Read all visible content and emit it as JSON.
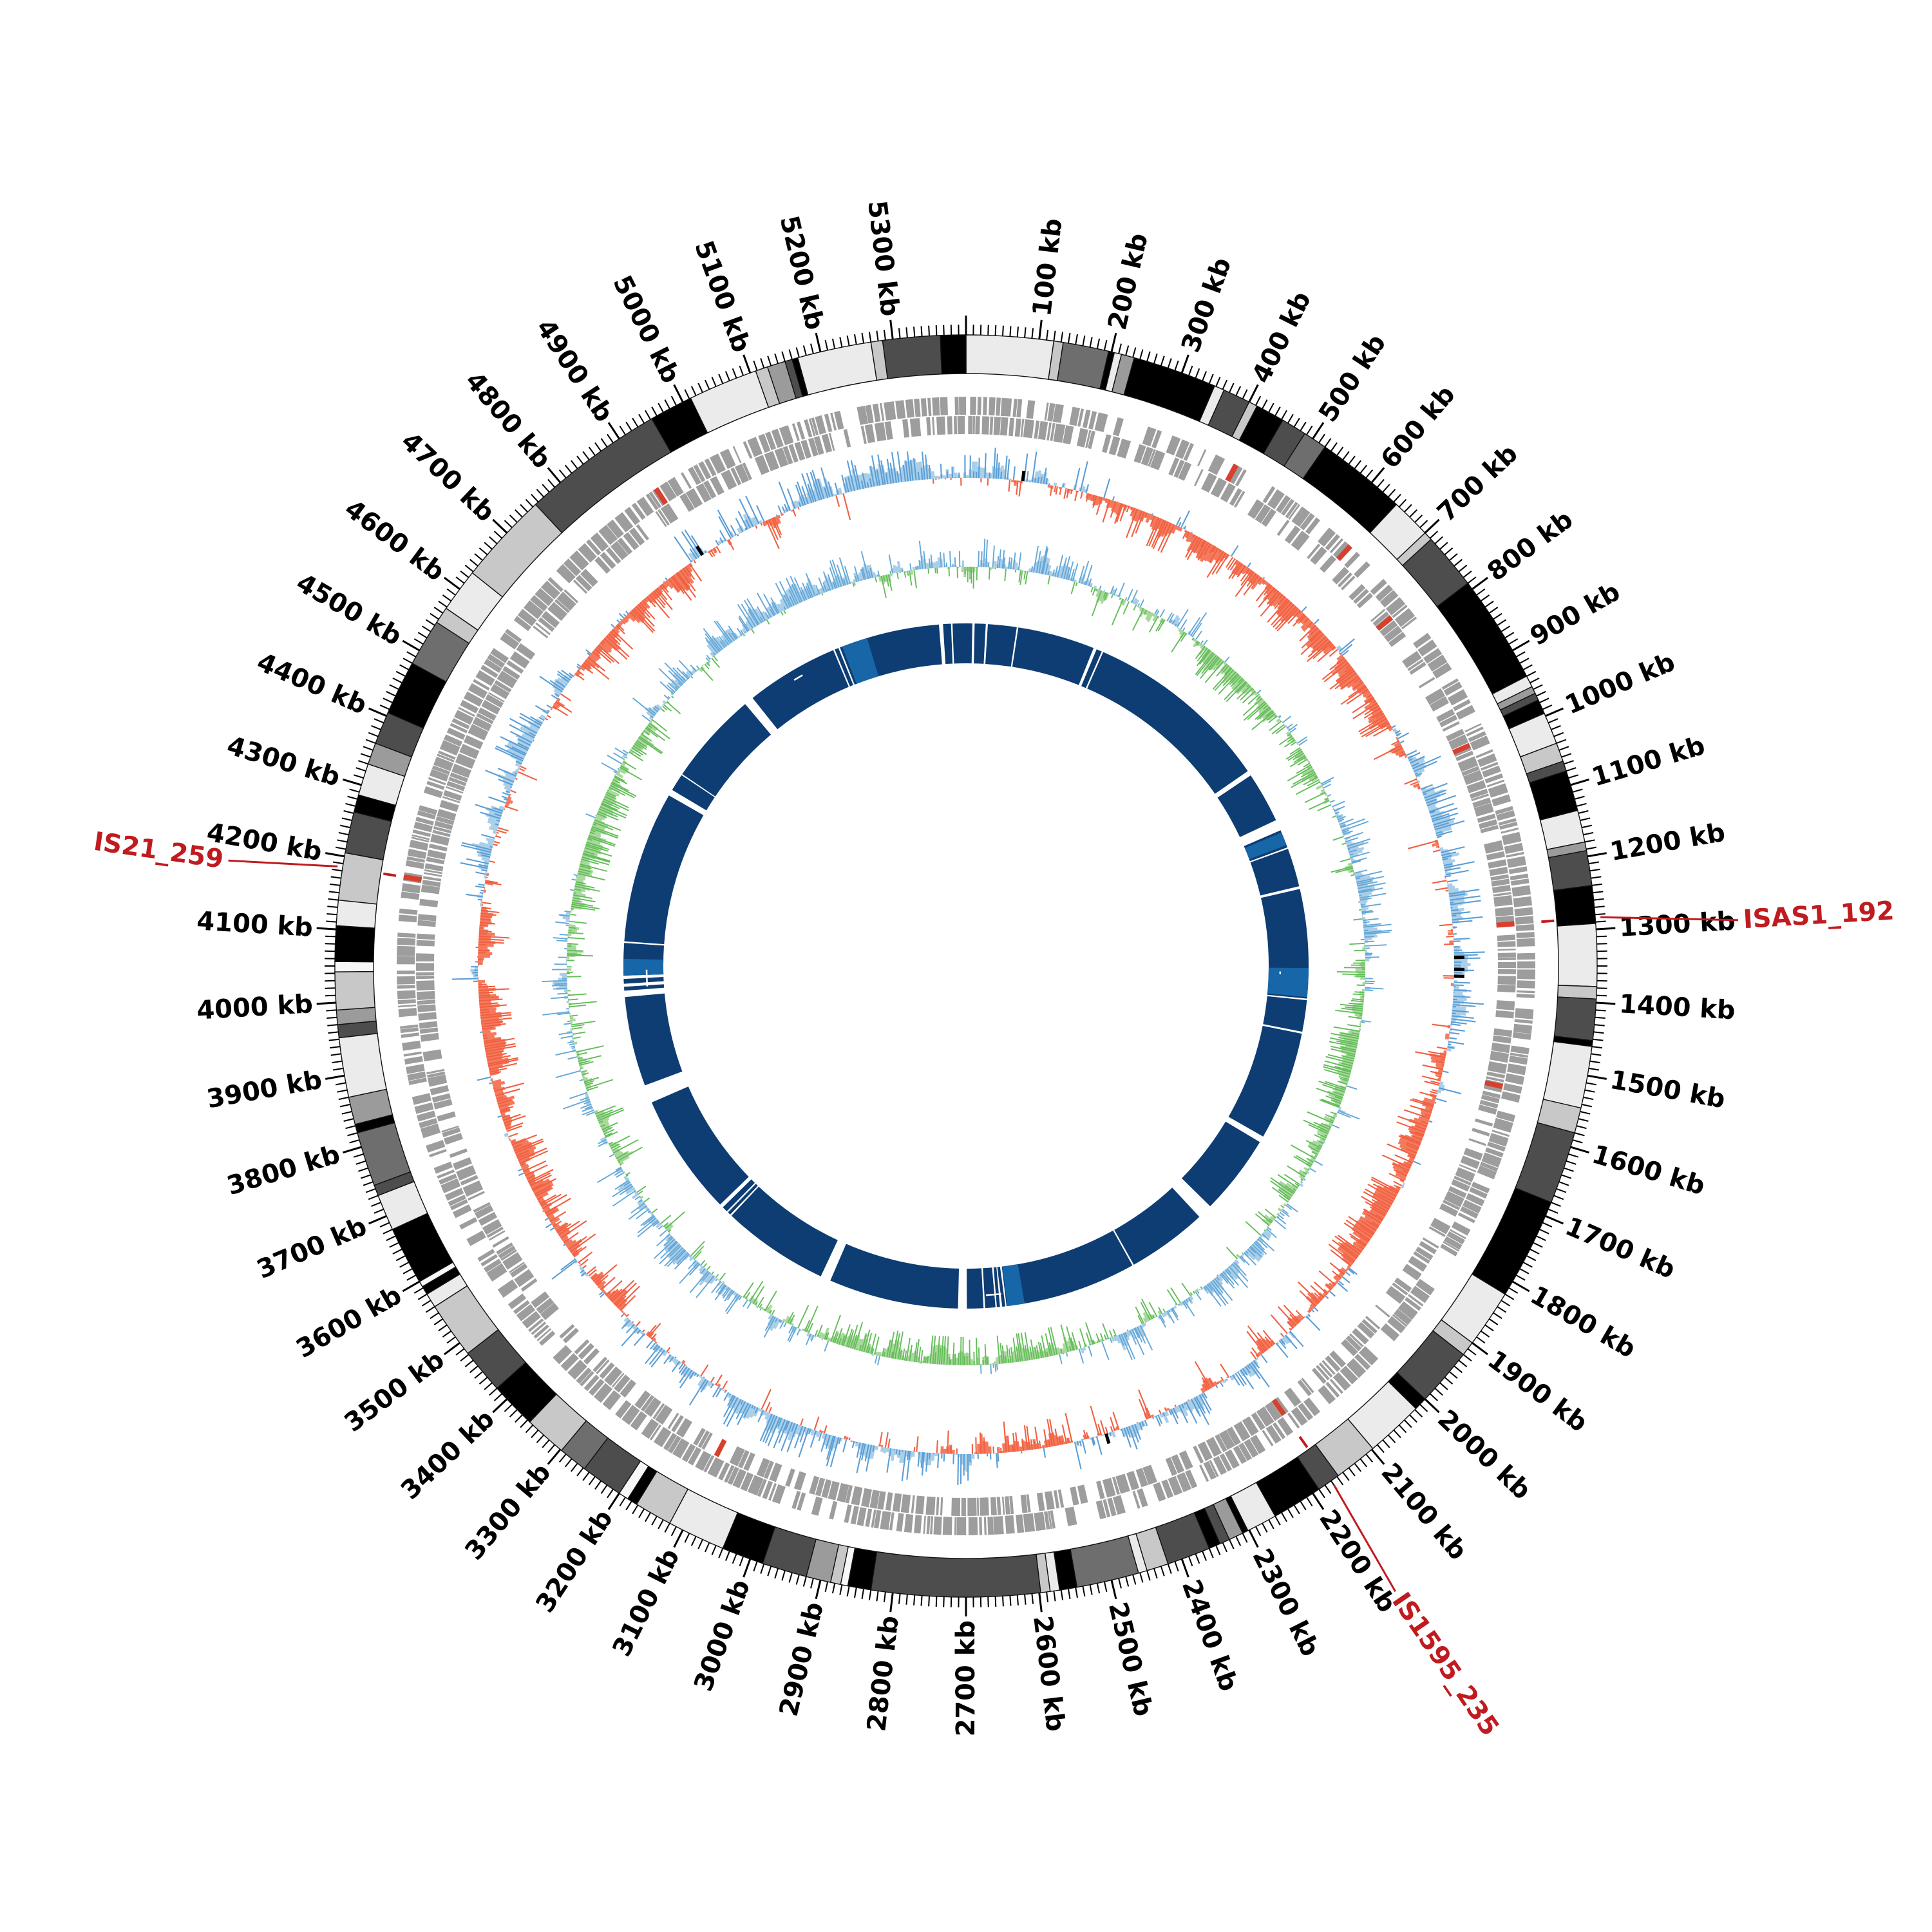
{
  "figure": {
    "title": "",
    "background": "#ffffff",
    "unit": "kb"
  },
  "colors": {
    "tick": "#000000",
    "tick_label": "#000000",
    "annotation_red": "#c01b1f",
    "gene_gray": "#9d9d9d",
    "gene_red": "#d8402e",
    "skew_fill_pos": "#a9cfe9",
    "skew_fill_neg": "#f47a5e",
    "skew_spike_pos": "#5b9ed6",
    "skew_spike_neg": "#f25f40",
    "gc_fill_pos": "#aacee8",
    "gc_fill_neg": "#a8d89c",
    "gc_spike_pos": "#64a8d8",
    "gc_spike_neg": "#63bd59",
    "identity_navy": "#0e3d73",
    "identity_light": "#1766a8",
    "black_mark": "#000000",
    "segment_outline": "#111111"
  },
  "tick_labels": [
    "100 kb",
    "200 kb",
    "300 kb",
    "400 kb",
    "500 kb",
    "600 kb",
    "700 kb",
    "800 kb",
    "900 kb",
    "1000 kb",
    "1100 kb",
    "1200 kb",
    "1300 kb",
    "1400 kb",
    "1500 kb",
    "1600 kb",
    "1700 kb",
    "1800 kb",
    "1900 kb",
    "2000 kb",
    "2100 kb",
    "2200 kb",
    "2300 kb",
    "2400 kb",
    "2500 kb",
    "2600 kb",
    "2700 kb",
    "2800 kb",
    "2900 kb",
    "3000 kb",
    "3100 kb",
    "3200 kb",
    "3300 kb",
    "3400 kb",
    "3500 kb",
    "3600 kb",
    "3700 kb",
    "3800 kb",
    "3900 kb",
    "4000 kb",
    "4100 kb",
    "4200 kb",
    "4300 kb",
    "4400 kb",
    "4500 kb",
    "4600 kb",
    "4700 kb",
    "4800 kb",
    "4900 kb",
    "5000 kb",
    "5100 kb",
    "5200 kb",
    "5300 kb"
  ],
  "chart_data": {
    "type": "circular-genome-map",
    "genome_length_kb": 5400,
    "tick_interval_kb": 100,
    "minor_tick_kb": 10,
    "rings_outer_to_inner": [
      "grayscale-contig-ring",
      "cds-gene-ring-two-bands",
      "gc-skew-ring (blue outward / orange inward)",
      "gc-content-ring (blue outward / green inward)",
      "identity-navy-ring"
    ],
    "shade_palette": [
      "#000000",
      "#4d4d4d",
      "#6e6e6e",
      "#9b9b9b",
      "#c8c8c8",
      "#ebebeb",
      "#f7f7f7"
    ],
    "grayscale_segments": [
      [
        0,
        120,
        5
      ],
      [
        120,
        133,
        4
      ],
      [
        133,
        196,
        2
      ],
      [
        196,
        204,
        0
      ],
      [
        204,
        214,
        5
      ],
      [
        214,
        232,
        3
      ],
      [
        232,
        348,
        0
      ],
      [
        348,
        362,
        5
      ],
      [
        362,
        400,
        1
      ],
      [
        400,
        412,
        4
      ],
      [
        412,
        452,
        0
      ],
      [
        452,
        487,
        1
      ],
      [
        487,
        520,
        2
      ],
      [
        520,
        645,
        0
      ],
      [
        645,
        700,
        5
      ],
      [
        700,
        712,
        4
      ],
      [
        712,
        790,
        1
      ],
      [
        790,
        940,
        0
      ],
      [
        940,
        956,
        5
      ],
      [
        956,
        966,
        3
      ],
      [
        966,
        976,
        1
      ],
      [
        976,
        996,
        0
      ],
      [
        996,
        1040,
        5
      ],
      [
        1040,
        1066,
        4
      ],
      [
        1066,
        1080,
        1
      ],
      [
        1080,
        1136,
        0
      ],
      [
        1136,
        1180,
        5
      ],
      [
        1180,
        1192,
        3
      ],
      [
        1192,
        1240,
        1
      ],
      [
        1240,
        1292,
        0
      ],
      [
        1292,
        1378,
        5
      ],
      [
        1378,
        1395,
        4
      ],
      [
        1395,
        1452,
        1
      ],
      [
        1452,
        1460,
        0
      ],
      [
        1460,
        1545,
        5
      ],
      [
        1545,
        1580,
        4
      ],
      [
        1580,
        1680,
        1
      ],
      [
        1680,
        1820,
        0
      ],
      [
        1820,
        1900,
        5
      ],
      [
        1900,
        1920,
        4
      ],
      [
        1920,
        2000,
        1
      ],
      [
        2000,
        2018,
        0
      ],
      [
        2018,
        2098,
        5
      ],
      [
        2098,
        2158,
        4
      ],
      [
        2158,
        2190,
        1
      ],
      [
        2190,
        2260,
        0
      ],
      [
        2260,
        2302,
        5
      ],
      [
        2302,
        2310,
        0
      ],
      [
        2310,
        2330,
        3
      ],
      [
        2330,
        2344,
        1
      ],
      [
        2344,
        2360,
        0
      ],
      [
        2360,
        2420,
        1
      ],
      [
        2420,
        2450,
        4
      ],
      [
        2450,
        2462,
        5
      ],
      [
        2462,
        2548,
        2
      ],
      [
        2548,
        2572,
        0
      ],
      [
        2572,
        2585,
        5
      ],
      [
        2585,
        2598,
        4
      ],
      [
        2598,
        2830,
        1
      ],
      [
        2830,
        2862,
        0
      ],
      [
        2862,
        2872,
        6
      ],
      [
        2872,
        2886,
        4
      ],
      [
        2886,
        2920,
        3
      ],
      [
        2920,
        2982,
        1
      ],
      [
        2982,
        3040,
        0
      ],
      [
        3040,
        3120,
        5
      ],
      [
        3120,
        3172,
        4
      ],
      [
        3172,
        3186,
        0
      ],
      [
        3186,
        3200,
        6
      ],
      [
        3200,
        3258,
        1
      ],
      [
        3258,
        3298,
        2
      ],
      [
        3298,
        3356,
        4
      ],
      [
        3356,
        3420,
        0
      ],
      [
        3420,
        3482,
        1
      ],
      [
        3482,
        3560,
        4
      ],
      [
        3560,
        3580,
        5
      ],
      [
        3580,
        3592,
        0
      ],
      [
        3592,
        3600,
        6
      ],
      [
        3600,
        3680,
        0
      ],
      [
        3680,
        3730,
        5
      ],
      [
        3730,
        3745,
        1
      ],
      [
        3745,
        3820,
        2
      ],
      [
        3820,
        3832,
        0
      ],
      [
        3832,
        3870,
        3
      ],
      [
        3870,
        3952,
        5
      ],
      [
        3952,
        3970,
        1
      ],
      [
        3970,
        3990,
        3
      ],
      [
        3990,
        4042,
        4
      ],
      [
        4042,
        4056,
        6
      ],
      [
        4056,
        4105,
        0
      ],
      [
        4105,
        4140,
        5
      ],
      [
        4140,
        4205,
        4
      ],
      [
        4205,
        4262,
        1
      ],
      [
        4262,
        4286,
        0
      ],
      [
        4286,
        4330,
        5
      ],
      [
        4330,
        4360,
        3
      ],
      [
        4360,
        4405,
        1
      ],
      [
        4405,
        4480,
        0
      ],
      [
        4480,
        4545,
        2
      ],
      [
        4545,
        4568,
        4
      ],
      [
        4568,
        4628,
        5
      ],
      [
        4628,
        4755,
        4
      ],
      [
        4755,
        4952,
        1
      ],
      [
        4952,
        5012,
        0
      ],
      [
        5012,
        5108,
        5
      ],
      [
        5108,
        5125,
        4
      ],
      [
        5125,
        5150,
        3
      ],
      [
        5150,
        5160,
        1
      ],
      [
        5160,
        5168,
        0
      ],
      [
        5168,
        5270,
        5
      ],
      [
        5270,
        5286,
        4
      ],
      [
        5286,
        5365,
        1
      ],
      [
        5365,
        5400,
        0
      ]
    ],
    "gc_skew_bias_control_points": [
      [
        0,
        0.5
      ],
      [
        150,
        0.1
      ],
      [
        250,
        -0.2
      ],
      [
        400,
        -0.5
      ],
      [
        700,
        -0.6
      ],
      [
        900,
        -0.3
      ],
      [
        1000,
        0.3
      ],
      [
        1200,
        0.5
      ],
      [
        1400,
        0.3
      ],
      [
        1600,
        -0.4
      ],
      [
        1900,
        -0.5
      ],
      [
        2050,
        -0.1
      ],
      [
        2200,
        0.4
      ],
      [
        2400,
        0.2
      ],
      [
        2550,
        -0.3
      ],
      [
        2700,
        0.2
      ],
      [
        2900,
        0.5
      ],
      [
        3200,
        0.4
      ],
      [
        3400,
        -0.3
      ],
      [
        3600,
        -0.5
      ],
      [
        3900,
        -0.5
      ],
      [
        4100,
        -0.3
      ],
      [
        4250,
        0.2
      ],
      [
        4450,
        0.3
      ],
      [
        4550,
        0.0
      ],
      [
        4650,
        -0.5
      ],
      [
        4850,
        -0.4
      ],
      [
        5000,
        0.3
      ],
      [
        5200,
        0.5
      ],
      [
        5400,
        0.5
      ]
    ],
    "gc_content_bias_control_points": [
      [
        0,
        0.2
      ],
      [
        300,
        0.1
      ],
      [
        600,
        -0.4
      ],
      [
        900,
        -0.2
      ],
      [
        1100,
        0.4
      ],
      [
        1300,
        0.3
      ],
      [
        1500,
        -0.4
      ],
      [
        1800,
        -0.4
      ],
      [
        2100,
        0.3
      ],
      [
        2300,
        0.2
      ],
      [
        2500,
        -0.2
      ],
      [
        2700,
        -0.5
      ],
      [
        3000,
        -0.3
      ],
      [
        3200,
        0.2
      ],
      [
        3400,
        0.3
      ],
      [
        3600,
        -0.3
      ],
      [
        3900,
        0.1
      ],
      [
        4200,
        -0.5
      ],
      [
        4500,
        -0.4
      ],
      [
        4700,
        0.3
      ],
      [
        5000,
        0.4
      ],
      [
        5200,
        0.2
      ],
      [
        5400,
        0.2
      ]
    ],
    "identity_ring": {
      "gaps_kb": [
        [
          16,
          22
        ],
        [
          50,
          55
        ],
        [
          128,
          132
        ],
        [
          328,
          336
        ],
        [
          350,
          354
        ],
        [
          830,
          843
        ],
        [
          972,
          1000
        ],
        [
          1046,
          1050
        ],
        [
          1148,
          1155
        ],
        [
          1432,
          1436
        ],
        [
          1516,
          1521
        ],
        [
          1798,
          1814
        ],
        [
          2018,
          2056
        ],
        [
          2260,
          2264
        ],
        [
          2598,
          2602
        ],
        [
          2610,
          2614
        ],
        [
          2622,
          2626
        ],
        [
          2652,
          2656
        ],
        [
          2698,
          2720
        ],
        [
          3050,
          3076
        ],
        [
          3348,
          3352
        ],
        [
          3360,
          3364
        ],
        [
          3378,
          3388
        ],
        [
          3698,
          3744
        ],
        [
          3972,
          3988
        ],
        [
          3998,
          4006
        ],
        [
          4018,
          4026
        ],
        [
          4040,
          4048
        ],
        [
          4108,
          4112
        ],
        [
          4498,
          4514
        ],
        [
          4558,
          4561
        ],
        [
          4798,
          4822
        ],
        [
          5058,
          5062
        ],
        [
          5072,
          5076
        ],
        [
          5332,
          5342
        ],
        [
          5362,
          5366
        ]
      ],
      "light_patches_kb": [
        [
          1006,
          1040
        ],
        [
          1355,
          1428
        ],
        [
          2552,
          2596
        ],
        [
          4026,
          4068
        ],
        [
          5082,
          5148
        ]
      ],
      "white_streaks_kb": [
        [
          1365,
          1372
        ],
        [
          2608,
          2648
        ],
        [
          3995,
          4040
        ],
        [
          4935,
          4960
        ]
      ]
    },
    "red_gene_marks": [
      {
        "kb": 425,
        "band": "outer"
      },
      {
        "kb": 637,
        "band": "outer"
      },
      {
        "kb": 760,
        "band": "inner"
      },
      {
        "kb": 995,
        "band": "inner"
      },
      {
        "kb": 1284,
        "band": "inner"
      },
      {
        "kb": 1540,
        "band": "inner"
      },
      {
        "kb": 2170,
        "band": "inner"
      },
      {
        "kb": 3105,
        "band": "inner"
      },
      {
        "kb": 4185,
        "band": "outer"
      },
      {
        "kb": 4905,
        "band": "outer"
      }
    ],
    "black_marks_kb": [
      100,
      1335,
      1356,
      1368,
      2450,
      4910
    ],
    "annotations": [
      {
        "label": "IS21_259",
        "position_kb": 4185,
        "label_kb": 4172,
        "label_radius": 1165
      },
      {
        "label": "ISAS1_192",
        "position_kb": 1284,
        "label_kb": 1299,
        "label_radius": 1209
      },
      {
        "label": "IS1595_235",
        "position_kb": 2170,
        "label_kb": 2183,
        "label_radius": 1186
      }
    ],
    "seeds": {
      "genes_outer": 7,
      "genes_inner": 13,
      "gc_skew": 11,
      "gc_content": 23
    }
  }
}
